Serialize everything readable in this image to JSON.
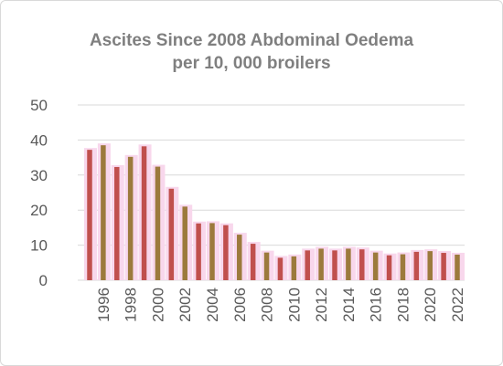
{
  "chart_data": {
    "type": "bar",
    "title_lines": [
      "Ascites Since 2008 Abdominal Oedema",
      "per 10, 000 broilers"
    ],
    "xlabel": "",
    "ylabel": "",
    "ylim": [
      0,
      50
    ],
    "yticks": [
      0,
      10,
      20,
      30,
      40,
      50
    ],
    "grid": true,
    "legend": "none",
    "x": [
      1995,
      1996,
      1997,
      1998,
      1999,
      2000,
      2001,
      2002,
      2003,
      2004,
      2005,
      2006,
      2007,
      2008,
      2009,
      2010,
      2011,
      2012,
      2013,
      2014,
      2015,
      2016,
      2017,
      2018,
      2019,
      2020,
      2021,
      2022
    ],
    "x_tick_labels": [
      "1996",
      "1998",
      "2000",
      "2002",
      "2004",
      "2006",
      "2008",
      "2010",
      "2012",
      "2014",
      "2016",
      "2018",
      "2020",
      "2022"
    ],
    "series": [
      {
        "values": [
          37.2,
          38.5,
          32.3,
          35.2,
          38.2,
          32.4,
          26.1,
          21.0,
          16.2,
          16.3,
          15.7,
          13.0,
          10.4,
          7.9,
          6.4,
          6.8,
          8.5,
          9.0,
          8.5,
          9.0,
          8.8,
          7.9,
          7.1,
          7.4,
          8.1,
          8.3,
          7.8,
          7.3
        ]
      }
    ],
    "colors": {
      "odd_bars": "#c0504d",
      "even_bars": "#9c7a3c",
      "bar_shadow": "#f8d7ec",
      "grid": "#d9d9d9",
      "title": "#7f7f7f",
      "ticks": "#595959"
    }
  }
}
